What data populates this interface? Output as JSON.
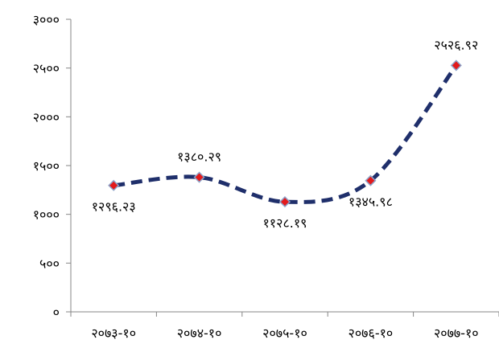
{
  "chart_data": {
    "type": "line",
    "title": "",
    "xlabel": "",
    "ylabel": "",
    "categories": [
      "२०७३-१०",
      "२०७४-१०",
      "२०७५-१०",
      "२०७६-१०",
      "२०७७-१०"
    ],
    "series": [
      {
        "values": [
          1296.23,
          1380.29,
          1128.19,
          1345.98,
          2526.92
        ],
        "value_labels": [
          "१२९६.२३",
          "१३८०.२९",
          "११२८.१९",
          "१३४५.९८",
          "२५२६.९२"
        ],
        "color": "#1f2f6b",
        "marker_color": "#e31a1c",
        "line_style": "dashed",
        "smoothed": true
      }
    ],
    "ylim": [
      0,
      3000
    ],
    "yticks": [
      0,
      500,
      1000,
      1500,
      2000,
      2500,
      3000
    ],
    "ytick_labels": [
      "०",
      "५००",
      "१०००",
      "१५००",
      "२०००",
      "२५००",
      "३०००"
    ],
    "grid": false,
    "legend": "none"
  }
}
